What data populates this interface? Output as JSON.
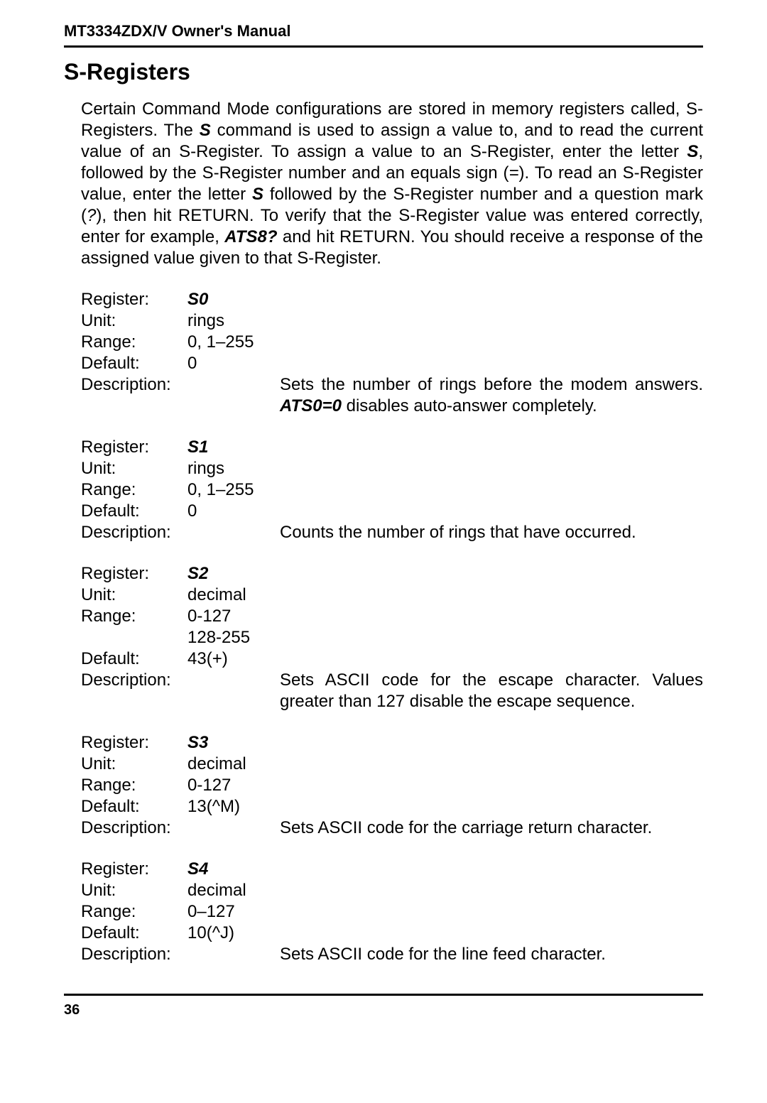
{
  "doc": {
    "header": "MT3334ZDX/V Owner's Manual",
    "section_title": "S-Registers",
    "page_num": "36"
  },
  "intro": {
    "p1a": "Certain Command Mode configurations are stored in memory registers called, S-Registers.  The ",
    "p1b": "S",
    "p1c": " command is used to assign a value to, and to read the current value of an S-Register. To assign a value to an S-Register, enter the letter ",
    "p1d": "S",
    "p1e": ", followed by the S-Register number and an equals sign (",
    "p1f": "=",
    "p1g": ").  To read an S-Register value, enter the letter ",
    "p1h": "S",
    "p1i": " followed by the S-Register number and a question mark (",
    "p1j": "?",
    "p1k": "), then hit RETURN. To verify that the S-Register value was entered correctly, enter for example, ",
    "p1l": "ATS8?",
    "p1m": " and hit RETURN. You should receive a response of the assigned value given to that S-Register."
  },
  "labels": {
    "register": "Register:",
    "unit": "Unit:",
    "range": "Range:",
    "default": "Default:",
    "description": "Description:"
  },
  "regs": [
    {
      "name": "S0",
      "unit": "rings",
      "range": "0, 1–255",
      "range2": "",
      "default": "0",
      "desc_a": "Sets the number of rings before the modem answers. ",
      "desc_b": "ATS0=0",
      "desc_c": " disables auto-answer completely.",
      "justify": true
    },
    {
      "name": "S1",
      "unit": "rings",
      "range": "0, 1–255",
      "range2": "",
      "default": "0",
      "desc_a": "Counts the number of rings that have occurred.",
      "desc_b": "",
      "desc_c": "",
      "justify": false
    },
    {
      "name": "S2",
      "unit": "decimal",
      "range": "0-127",
      "range2": "128-255",
      "default": "43(+)",
      "desc_a": "Sets ASCII code for the escape character. Values greater than 127 disable the escape sequence.",
      "desc_b": "",
      "desc_c": "",
      "justify": true
    },
    {
      "name": "S3",
      "unit": "decimal",
      "range": "0-127",
      "range2": "",
      "default": "13(^M)",
      "desc_a": "Sets ASCII code for the carriage return character.",
      "desc_b": "",
      "desc_c": "",
      "justify": false
    },
    {
      "name": "S4",
      "unit": "decimal",
      "range": "0–127",
      "range2": "",
      "default": "10(^J)",
      "desc_a": "Sets ASCII code for the line feed character.",
      "desc_b": "",
      "desc_c": "",
      "justify": false
    }
  ],
  "style": {
    "body_bg": "#ffffff",
    "text_color": "#000000",
    "rule_color": "#000000",
    "body_fontsize": 24,
    "header_fontsize": 22,
    "section_fontsize": 32,
    "pagenum_fontsize": 20
  }
}
